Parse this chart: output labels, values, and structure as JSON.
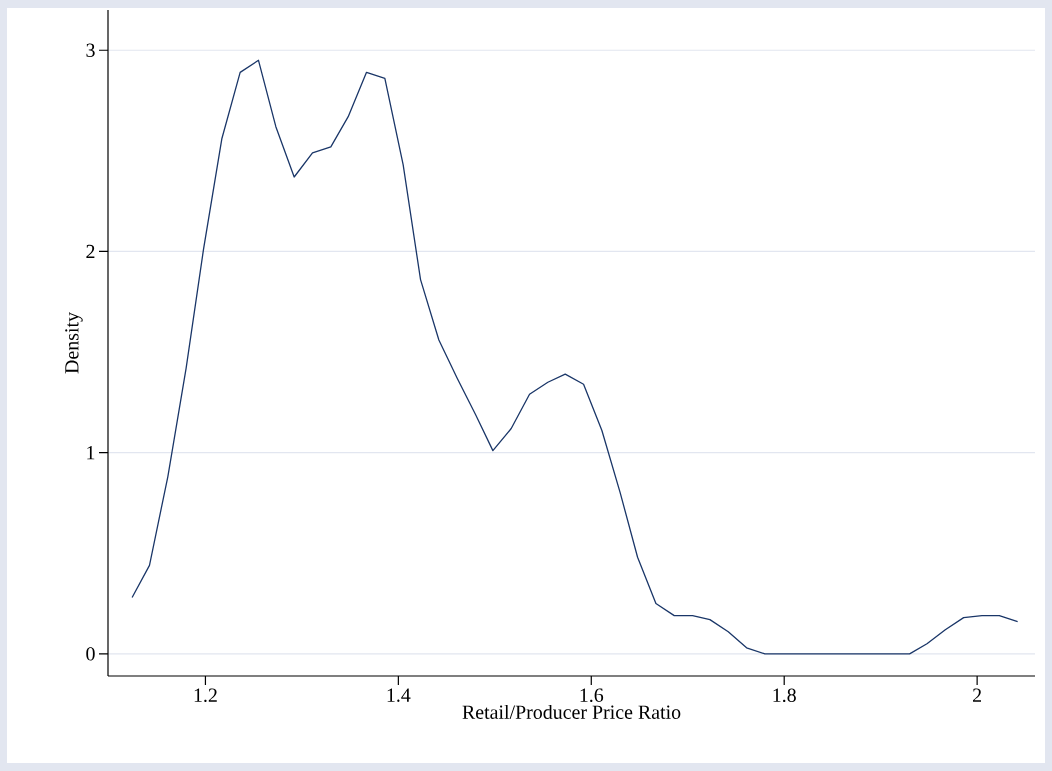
{
  "chart_data": {
    "type": "line",
    "xlabel": "Retail/Producer Price Ratio",
    "ylabel": "Density",
    "x": [
      1.124,
      1.142,
      1.161,
      1.18,
      1.198,
      1.217,
      1.236,
      1.255,
      1.273,
      1.292,
      1.311,
      1.33,
      1.348,
      1.367,
      1.386,
      1.405,
      1.423,
      1.442,
      1.461,
      1.48,
      1.498,
      1.517,
      1.536,
      1.555,
      1.573,
      1.592,
      1.611,
      1.63,
      1.648,
      1.667,
      1.686,
      1.705,
      1.723,
      1.742,
      1.761,
      1.78,
      1.798,
      1.817,
      1.836,
      1.855,
      1.873,
      1.892,
      1.911,
      1.93,
      1.948,
      1.967,
      1.986,
      2.005,
      2.023,
      2.042
    ],
    "values": [
      0.28,
      0.44,
      0.88,
      1.42,
      2.01,
      2.56,
      2.89,
      2.95,
      2.62,
      2.37,
      2.49,
      2.52,
      2.67,
      2.89,
      2.86,
      2.43,
      1.86,
      1.56,
      1.37,
      1.19,
      1.01,
      1.12,
      1.29,
      1.35,
      1.39,
      1.34,
      1.11,
      0.8,
      0.48,
      0.25,
      0.19,
      0.19,
      0.17,
      0.11,
      0.03,
      0,
      0,
      0,
      0,
      0,
      0,
      0,
      0,
      0,
      0.05,
      0.12,
      0.18,
      0.19,
      0.19,
      0.16
    ],
    "color": "#1a3668",
    "marker": "none",
    "line_style": "solid",
    "xlim": [
      1.099,
      2.06
    ],
    "ylim": [
      -0.11,
      3.2
    ],
    "xticks": [
      1.2,
      1.4,
      1.6,
      1.8,
      2
    ],
    "yticks": [
      0,
      1,
      2,
      3
    ],
    "grid": "y"
  }
}
